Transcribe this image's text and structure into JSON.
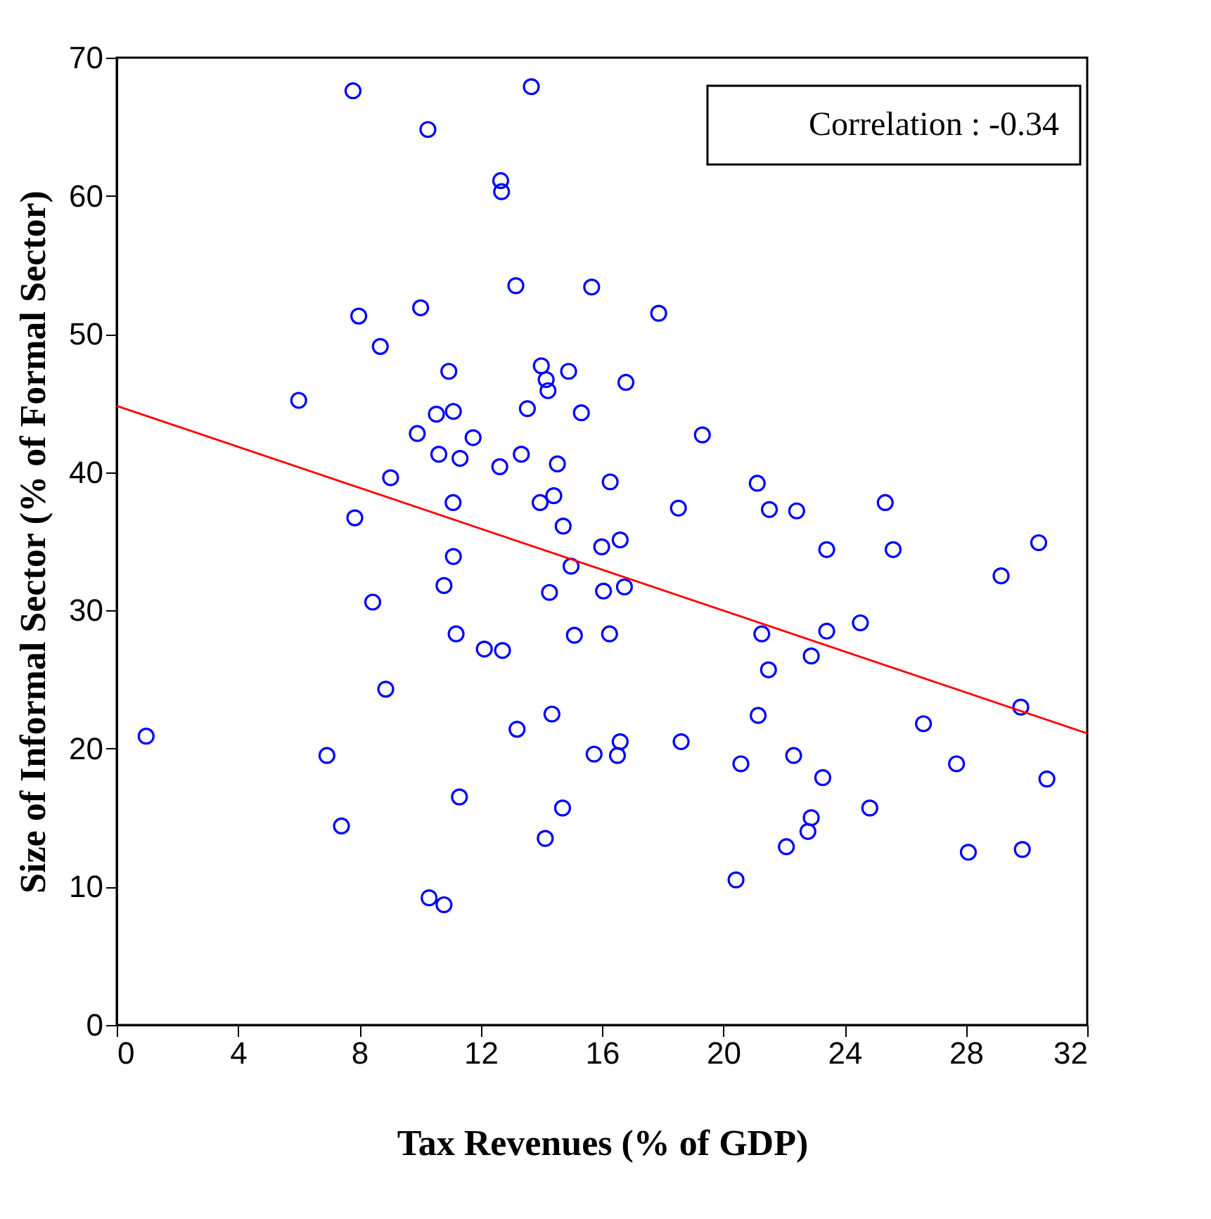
{
  "chart_data": {
    "type": "scatter",
    "xlabel": "Tax Revenues (% of GDP)",
    "ylabel": "Size of Informal Sector (% of Formal Sector)",
    "annotations": [
      "Correlation : -0.34"
    ],
    "xlim": [
      0,
      32
    ],
    "ylim": [
      0,
      70
    ],
    "xticks": [
      0,
      4,
      8,
      12,
      16,
      20,
      24,
      28,
      32
    ],
    "yticks": [
      0,
      10,
      20,
      30,
      40,
      50,
      60,
      70
    ],
    "grid": false,
    "x": [
      7.79,
      13.67,
      10.26,
      12.66,
      12.69,
      13.16,
      15.66,
      10.02,
      7.98,
      8.69,
      14.0,
      14.9,
      10.95,
      14.16,
      14.22,
      6.0,
      13.54,
      10.54,
      11.1,
      15.32,
      9.91,
      11.75,
      10.62,
      11.32,
      13.34,
      12.63,
      14.53,
      9.03,
      16.27,
      11.09,
      13.96,
      14.41,
      7.85,
      14.72,
      15.99,
      17.87,
      16.79,
      19.31,
      18.52,
      21.12,
      21.52,
      22.42,
      25.34,
      16.6,
      23.41,
      25.6,
      30.4,
      29.16,
      16.05,
      16.74,
      16.25,
      21.27,
      23.41,
      24.52,
      22.9,
      21.49,
      21.15,
      26.6,
      29.81,
      15.74,
      16.51,
      16.6,
      18.61,
      20.58,
      22.32,
      23.28,
      27.69,
      30.67,
      24.83,
      22.9,
      22.79,
      22.08,
      28.08,
      29.86,
      20.42,
      11.1,
      14.98,
      10.79,
      8.44,
      14.27,
      11.19,
      12.12,
      12.72,
      15.09,
      8.87,
      14.35,
      13.2,
      0.97,
      6.93,
      11.3,
      14.7,
      7.41,
      14.13,
      10.3,
      10.79
    ],
    "series": [
      {
        "marker": "circle",
        "color": "#0000ff",
        "values": [
          67.6,
          67.9,
          64.8,
          61.1,
          60.3,
          53.5,
          53.4,
          51.9,
          51.3,
          49.1,
          47.7,
          47.3,
          47.3,
          46.7,
          45.9,
          45.2,
          44.6,
          44.2,
          44.4,
          44.3,
          42.8,
          42.5,
          41.3,
          41.0,
          41.3,
          40.4,
          40.6,
          39.6,
          39.3,
          37.8,
          37.8,
          38.3,
          36.7,
          36.1,
          34.6,
          51.5,
          46.5,
          42.7,
          37.4,
          39.2,
          37.3,
          37.2,
          37.8,
          35.1,
          34.4,
          34.4,
          34.9,
          32.5,
          31.4,
          31.7,
          28.3,
          28.3,
          28.5,
          29.1,
          26.7,
          25.7,
          22.4,
          21.8,
          23.0,
          19.6,
          19.5,
          20.5,
          20.5,
          18.9,
          19.5,
          17.9,
          18.9,
          17.8,
          15.7,
          15.0,
          14.0,
          12.9,
          12.5,
          12.7,
          10.5,
          33.9,
          33.2,
          31.8,
          30.6,
          31.3,
          28.3,
          27.2,
          27.1,
          28.2,
          24.3,
          22.5,
          21.4,
          20.9,
          19.5,
          16.5,
          15.7,
          14.4,
          13.5,
          9.2,
          8.7
        ]
      },
      {
        "type": "line",
        "color": "#ff0000",
        "x": [
          0,
          32
        ],
        "values": [
          44.8,
          21.1
        ]
      }
    ]
  }
}
